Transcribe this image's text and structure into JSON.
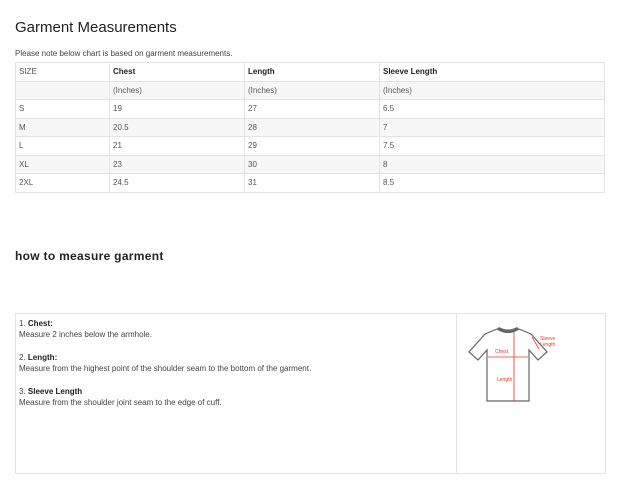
{
  "title": "Garment Measurements",
  "note": "Please note below chart is based on garment measurements.",
  "table": {
    "headers": [
      "SIZE",
      "Chest",
      "Length",
      "Sleeve Length"
    ],
    "units": [
      "",
      "(Inches)",
      "(Inches)",
      "(Inches)"
    ],
    "rows": [
      [
        "S",
        "19",
        "27",
        "6.5"
      ],
      [
        "M",
        "20.5",
        "28",
        "7"
      ],
      [
        "L",
        "21",
        "29",
        "7.5"
      ],
      [
        "XL",
        "23",
        "30",
        "8"
      ],
      [
        "2XL",
        "24.5",
        "31",
        "8.5"
      ]
    ]
  },
  "howto": {
    "title": "how to measure garment",
    "items": [
      {
        "num": "1.",
        "label": "Chest:",
        "desc": "Measure 2 inches below the armhole."
      },
      {
        "num": "2.",
        "label": "Length:",
        "desc": "Measure from the highest point of the shoulder seam to the bottom of the garment."
      },
      {
        "num": "3.",
        "label": "Sleeve Length",
        "desc": "Measure from the shoulder joint seam to the edge of cuff."
      }
    ],
    "diagram_labels": {
      "chest": "Chest",
      "length": "Length",
      "sleeve1": "Sleeve",
      "sleeve2": "Length"
    }
  },
  "colors": {
    "accent": "#e53935"
  }
}
